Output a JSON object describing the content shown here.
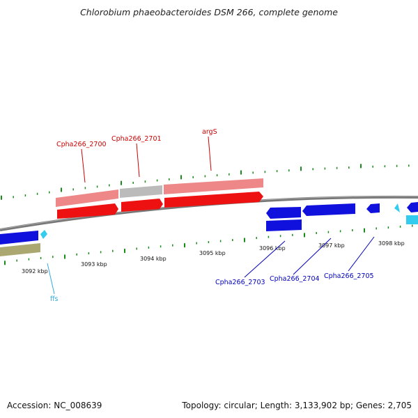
{
  "title": "Chlorobium phaeobacteroides DSM 266, complete genome",
  "footer": {
    "accession": "Accession: NC_008639",
    "summary": "Topology: circular; Length: 3,133,902 bp; Genes: 2,705"
  },
  "colors": {
    "backbone": "#888888",
    "tick": "#1a8a1a",
    "red_gene": "#ee1111",
    "pink_gene": "#ee8888",
    "gray_gene": "#bbbbbb",
    "blue_gene": "#1111dd",
    "cyan_gene": "#33ccee",
    "olive_gene": "#aaa870",
    "red_label": "#cc0000",
    "blue_label": "#0000bb",
    "cyan_label": "#33aadd"
  },
  "ticks": {
    "labels": [
      "3092 kbp",
      "3093 kbp",
      "3094 kbp",
      "3095 kbp",
      "3096 kbp",
      "3097 kbp",
      "3098 kbp"
    ]
  },
  "gene_labels": [
    {
      "name": "Cpha266_2700",
      "color": "red"
    },
    {
      "name": "Cpha266_2701",
      "color": "red"
    },
    {
      "name": "argS",
      "color": "red"
    },
    {
      "name": "ffs",
      "color": "cyan"
    },
    {
      "name": "Cpha266_2703",
      "color": "blue"
    },
    {
      "name": "Cpha266_2704",
      "color": "blue"
    },
    {
      "name": "Cpha266_2705",
      "color": "blue"
    }
  ]
}
